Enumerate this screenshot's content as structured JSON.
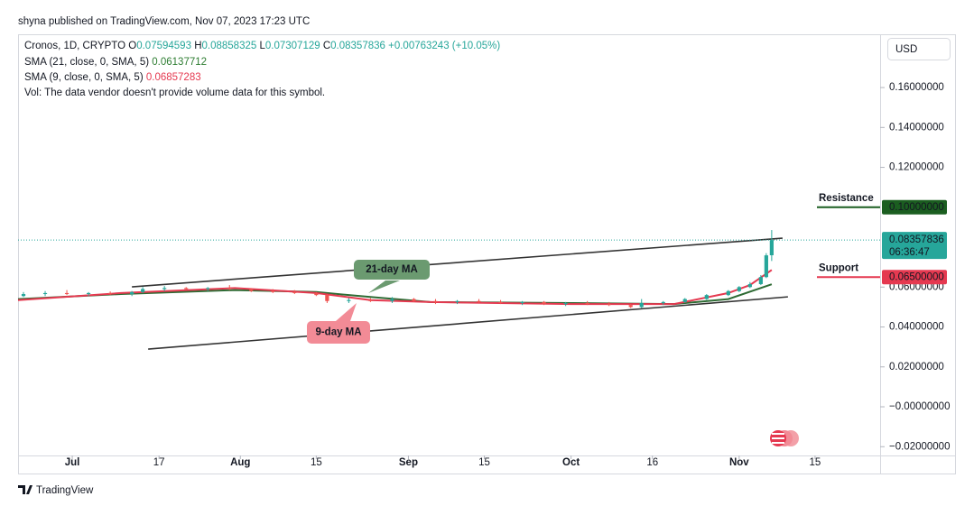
{
  "header": "shyna published on TradingView.com, Nov 07, 2023 17:23 UTC",
  "footer": "TradingView",
  "chart_data": {
    "type": "candlestick",
    "legend": {
      "symbol": "Cronos, 1D, CRYPTO",
      "ohlc": [
        {
          "key": "O",
          "text": "0.07594593"
        },
        {
          "key": "H",
          "text": "0.08858325"
        },
        {
          "key": "L",
          "text": "0.07307129"
        },
        {
          "key": "C",
          "text": "0.08357836"
        }
      ],
      "change": "+0.00763243 (+10.05%)",
      "studies": [
        {
          "label": "SMA (21, close, 0, SMA, 5)",
          "text": "0.06137712",
          "color": "#2e7d32"
        },
        {
          "label": "SMA (9, close, 0, SMA, 5)",
          "text": "0.06857283",
          "color": "#e53950"
        }
      ],
      "volume": "Vol: The data vendor doesn't provide volume data for this symbol."
    },
    "currency": "USD",
    "up_color": "#26a69a",
    "down_color": "#ef5350",
    "x": [
      "2023-06-22",
      "2023-06-26",
      "2023-06-30",
      "2023-07-04",
      "2023-07-08",
      "2023-07-12",
      "2023-07-14",
      "2023-07-18",
      "2023-07-22",
      "2023-07-26",
      "2023-07-30",
      "2023-08-03",
      "2023-08-07",
      "2023-08-11",
      "2023-08-15",
      "2023-08-17",
      "2023-08-21",
      "2023-08-25",
      "2023-08-29",
      "2023-09-02",
      "2023-09-06",
      "2023-09-10",
      "2023-09-14",
      "2023-09-18",
      "2023-09-22",
      "2023-09-26",
      "2023-09-30",
      "2023-10-04",
      "2023-10-08",
      "2023-10-12",
      "2023-10-14",
      "2023-10-18",
      "2023-10-22",
      "2023-10-26",
      "2023-10-30",
      "2023-11-01",
      "2023-11-03",
      "2023-11-05",
      "2023-11-06",
      "2023-11-07"
    ],
    "open": [
      0.0555,
      0.0565,
      0.057,
      0.0565,
      0.057,
      0.0565,
      0.0575,
      0.059,
      0.0595,
      0.059,
      0.0595,
      0.059,
      0.058,
      0.0575,
      0.057,
      0.056,
      0.053,
      0.0535,
      0.053,
      0.054,
      0.053,
      0.0525,
      0.053,
      0.0525,
      0.052,
      0.0525,
      0.0515,
      0.052,
      0.0515,
      0.051,
      0.05,
      0.052,
      0.0525,
      0.054,
      0.056,
      0.058,
      0.06,
      0.0615,
      0.065,
      0.07594593
    ],
    "high": [
      0.0575,
      0.058,
      0.0585,
      0.0575,
      0.0578,
      0.058,
      0.06,
      0.0605,
      0.06,
      0.06,
      0.061,
      0.0595,
      0.059,
      0.0585,
      0.0575,
      0.0565,
      0.0545,
      0.0545,
      0.055,
      0.0545,
      0.054,
      0.0535,
      0.054,
      0.0535,
      0.053,
      0.053,
      0.0525,
      0.053,
      0.0525,
      0.0515,
      0.054,
      0.053,
      0.0545,
      0.0565,
      0.0585,
      0.0605,
      0.0625,
      0.066,
      0.077,
      0.08858325
    ],
    "low": [
      0.055,
      0.0555,
      0.056,
      0.0555,
      0.056,
      0.0555,
      0.057,
      0.058,
      0.0585,
      0.058,
      0.0585,
      0.0575,
      0.057,
      0.0565,
      0.0555,
      0.052,
      0.052,
      0.0525,
      0.052,
      0.0525,
      0.0515,
      0.0515,
      0.052,
      0.0515,
      0.051,
      0.051,
      0.0505,
      0.051,
      0.0505,
      0.0495,
      0.0495,
      0.051,
      0.052,
      0.0535,
      0.0555,
      0.0575,
      0.0595,
      0.061,
      0.0645,
      0.07307129
    ],
    "close": [
      0.0565,
      0.057,
      0.0565,
      0.057,
      0.0565,
      0.0575,
      0.059,
      0.0595,
      0.059,
      0.0595,
      0.059,
      0.058,
      0.0575,
      0.057,
      0.056,
      0.053,
      0.0535,
      0.053,
      0.054,
      0.053,
      0.0525,
      0.053,
      0.0525,
      0.052,
      0.0525,
      0.0515,
      0.052,
      0.0515,
      0.051,
      0.05,
      0.052,
      0.0525,
      0.054,
      0.056,
      0.058,
      0.06,
      0.0615,
      0.065,
      0.0759,
      0.08357836
    ],
    "lines": [
      {
        "name": "21-day MA",
        "color": "#2e6b34",
        "label_color": "#6b9a70",
        "x": [
          "2023-06-21",
          "2023-07-10",
          "2023-07-31",
          "2023-08-15",
          "2023-08-25",
          "2023-09-05",
          "2023-10-01",
          "2023-10-20",
          "2023-10-30",
          "2023-11-07"
        ],
        "values": [
          0.054,
          0.0565,
          0.0585,
          0.0575,
          0.055,
          0.0525,
          0.052,
          0.0515,
          0.054,
          0.06137712
        ]
      },
      {
        "name": "9-day MA",
        "color": "#e53950",
        "label_color": "#f28b96",
        "x": [
          "2023-06-21",
          "2023-07-10",
          "2023-07-31",
          "2023-08-15",
          "2023-08-25",
          "2023-09-05",
          "2023-10-01",
          "2023-10-20",
          "2023-10-30",
          "2023-11-03",
          "2023-11-07"
        ],
        "values": [
          0.0535,
          0.057,
          0.0595,
          0.057,
          0.0535,
          0.0525,
          0.0515,
          0.0515,
          0.057,
          0.061,
          0.06857283
        ]
      }
    ],
    "trendlines": [
      {
        "x": [
          "2023-07-12",
          "2023-11-09"
        ],
        "y": [
          0.0601,
          0.0845
        ]
      },
      {
        "x": [
          "2023-07-15",
          "2023-11-10"
        ],
        "y": [
          0.0289,
          0.0551
        ]
      }
    ],
    "levels": [
      {
        "name": "Resistance",
        "value": 0.1,
        "label": "0.10000000",
        "name_color": "#d32f3c",
        "line_color": "#1b5e20"
      },
      {
        "name": "Support",
        "value": 0.065,
        "label": "0.06500000",
        "name_color": "#1b5e20",
        "line_color": "#e53950"
      }
    ],
    "last_price": {
      "value": 0.08357836,
      "countdown": "06:36:47",
      "color": "#26a69a"
    },
    "xlim": [
      "2023-06-21",
      "2023-11-27"
    ],
    "xticks": [
      {
        "value": "2023-07-01",
        "label": "Jul"
      },
      {
        "value": "2023-07-17",
        "label": "17"
      },
      {
        "value": "2023-08-01",
        "label": "Aug"
      },
      {
        "value": "2023-08-15",
        "label": "15"
      },
      {
        "value": "2023-09-01",
        "label": "Sep"
      },
      {
        "value": "2023-09-15",
        "label": "15"
      },
      {
        "value": "2023-10-01",
        "label": "Oct"
      },
      {
        "value": "2023-10-16",
        "label": "16"
      },
      {
        "value": "2023-11-01",
        "label": "Nov"
      },
      {
        "value": "2023-11-15",
        "label": "15"
      }
    ],
    "ylim": [
      -0.0244,
      0.1867
    ],
    "yticks": [
      {
        "value": 0.16,
        "label": "0.16000000"
      },
      {
        "value": 0.14,
        "label": "0.14000000"
      },
      {
        "value": 0.12,
        "label": "0.12000000"
      },
      {
        "value": 0.06,
        "label": "0.06000000"
      },
      {
        "value": 0.04,
        "label": "0.04000000"
      },
      {
        "value": 0.02,
        "label": "0.02000000"
      },
      {
        "value": 0,
        "label": "−0.00000000"
      },
      {
        "value": -0.02,
        "label": "−0.02000000"
      }
    ]
  }
}
